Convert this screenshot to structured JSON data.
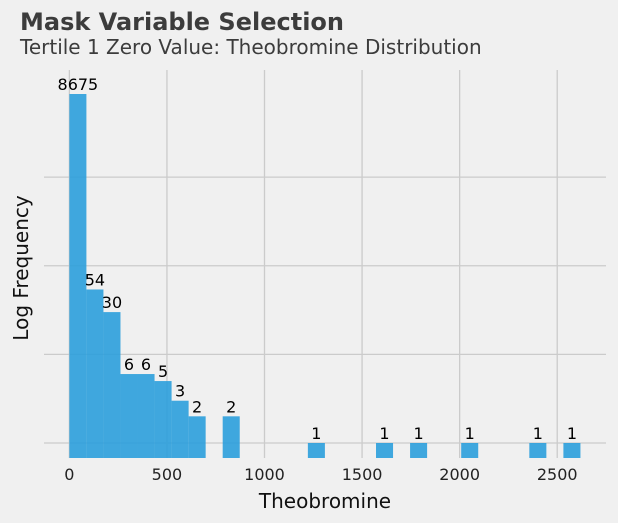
{
  "chart_data": {
    "type": "bar",
    "title": "Mask Variable Selection",
    "subtitle": "Tertile 1 Zero Value: Theobromine Distribution",
    "xlabel": "Theobromine",
    "ylabel": "Log Frequency",
    "y_scale": "log",
    "y_tick_labels_shown": false,
    "grid": true,
    "xlim": [
      -130,
      2750
    ],
    "x_ticks": [
      0,
      500,
      1000,
      1500,
      2000,
      2500
    ],
    "bin_width": 87.3,
    "bins": [
      {
        "x0": 0.0,
        "count": 8675
      },
      {
        "x0": 87.3,
        "count": 54
      },
      {
        "x0": 174.6,
        "count": 30
      },
      {
        "x0": 261.9,
        "count": 6
      },
      {
        "x0": 349.2,
        "count": 6
      },
      {
        "x0": 436.5,
        "count": 5
      },
      {
        "x0": 523.8,
        "count": 3
      },
      {
        "x0": 611.1,
        "count": 2
      },
      {
        "x0": 785.7,
        "count": 2
      },
      {
        "x0": 1222.2,
        "count": 1
      },
      {
        "x0": 1571.4,
        "count": 1
      },
      {
        "x0": 1746.0,
        "count": 1
      },
      {
        "x0": 2007.9,
        "count": 1
      },
      {
        "x0": 2357.1,
        "count": 1
      },
      {
        "x0": 2531.7,
        "count": 1
      }
    ],
    "colors": {
      "bar": "#2b9fdb",
      "background": "#f0f0f0",
      "grid": "#cbcbcb"
    }
  }
}
